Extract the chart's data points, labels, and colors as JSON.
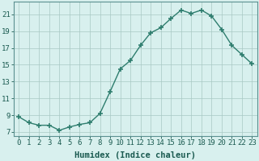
{
  "x": [
    0,
    1,
    2,
    3,
    4,
    5,
    6,
    7,
    8,
    9,
    10,
    11,
    12,
    13,
    14,
    15,
    16,
    17,
    18,
    19,
    20,
    21,
    22,
    23
  ],
  "y": [
    8.8,
    8.1,
    7.8,
    7.8,
    7.2,
    7.6,
    7.9,
    8.1,
    9.2,
    11.8,
    14.5,
    15.5,
    17.3,
    18.8,
    19.4,
    20.5,
    21.5,
    21.1,
    21.5,
    20.8,
    19.2,
    17.3,
    16.2,
    15.1
  ],
  "line_color": "#2e7d6e",
  "marker": "+",
  "markersize": 4,
  "markeredgewidth": 1.2,
  "linewidth": 1.0,
  "bg_color": "#d8f0ee",
  "grid_color": "#a8c8c4",
  "xlabel": "Humidex (Indice chaleur)",
  "xlim": [
    -0.5,
    23.5
  ],
  "ylim": [
    6.5,
    22.5
  ],
  "yticks": [
    7,
    9,
    11,
    13,
    15,
    17,
    19,
    21
  ],
  "xticks": [
    0,
    1,
    2,
    3,
    4,
    5,
    6,
    7,
    8,
    9,
    10,
    11,
    12,
    13,
    14,
    15,
    16,
    17,
    18,
    19,
    20,
    21,
    22,
    23
  ],
  "xlabel_fontsize": 7.5,
  "tick_fontsize": 6.5
}
